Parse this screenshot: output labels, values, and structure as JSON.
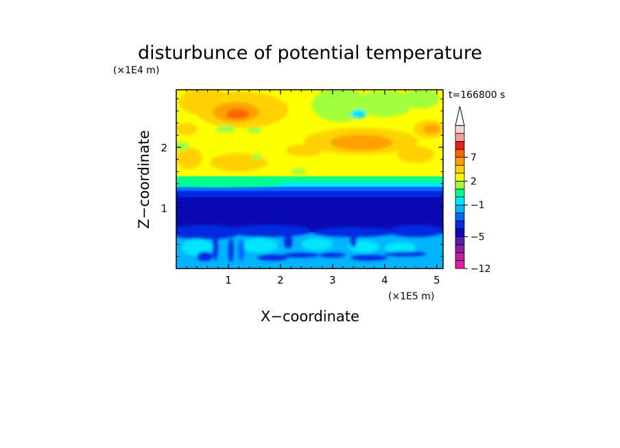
{
  "chart_data": {
    "type": "heatmap",
    "title": "disturbunce of potential temperature",
    "xlabel": "X−coordinate",
    "ylabel": "Z−coordinate",
    "x_unit": "(×1E5 m)",
    "y_unit": "(×1E4 m)",
    "time_label": "t=166800 s",
    "xlim": [
      0,
      5.12
    ],
    "ylim": [
      0,
      2.95
    ],
    "x_ticks": [
      1,
      2,
      3,
      4,
      5
    ],
    "y_ticks": [
      1,
      2
    ],
    "colorbar": {
      "levels": [
        -12,
        -11,
        -9,
        -7,
        -5,
        -4,
        -3,
        -2,
        -1,
        0,
        1,
        2,
        3,
        5,
        7,
        9,
        11,
        13
      ],
      "colors": [
        "#e61ea6",
        "#c31e9b",
        "#8c1ea8",
        "#5a1ea8",
        "#0a0ab4",
        "#002ae0",
        "#0068ff",
        "#00b4ff",
        "#00e6ff",
        "#00ff8c",
        "#a0ff3c",
        "#ffff00",
        "#ffd200",
        "#ffa000",
        "#ff6400",
        "#e61e1e",
        "#ff9e9e",
        "#fad2d2"
      ],
      "tick_labels": [
        {
          "text": "−12",
          "level": -12
        },
        {
          "text": "−5",
          "level": -5
        },
        {
          "text": "−1",
          "level": -1
        },
        {
          "text": "2",
          "level": 2
        },
        {
          "text": "7",
          "level": 7
        }
      ],
      "extend": "max"
    },
    "field_description": "stratified bands: cool anomalies (−5) near 0.6–1.3 ×1E4 m, warm anomalies (2–7) aloft with cores near x≈1.1, z≈2.6 and x≈3.5, z≈2.1"
  }
}
